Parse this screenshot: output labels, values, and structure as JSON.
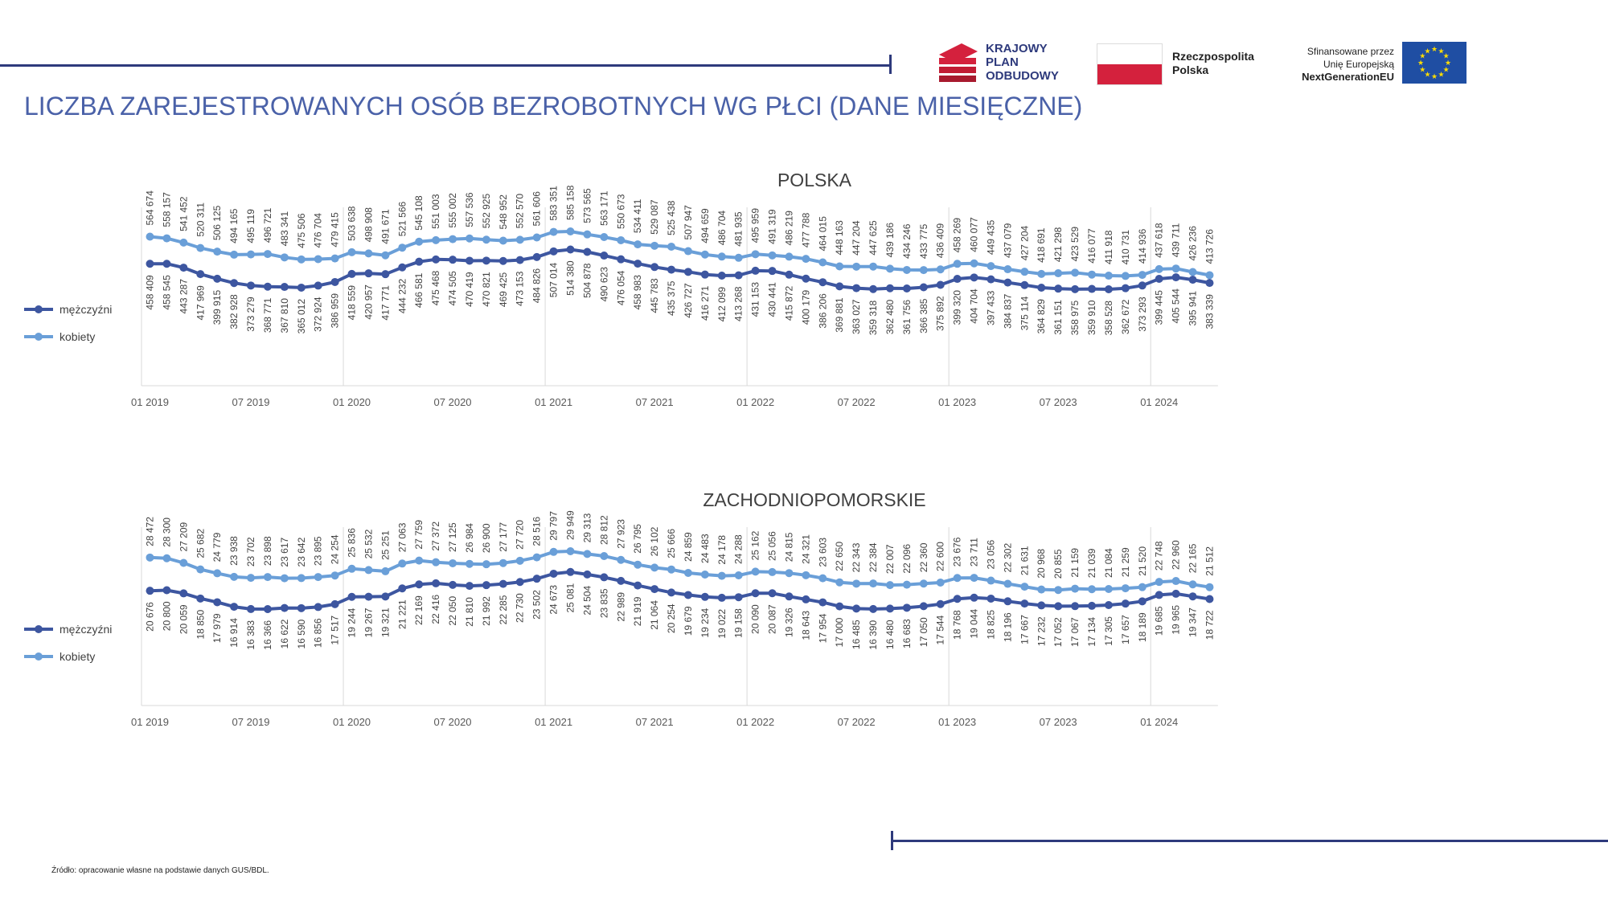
{
  "page": {
    "title": "LICZBA ZAREJESTROWANYCH OSÓB BEZROBOTNYCH WG PŁCI (DANE MIESIĘCZNE)",
    "source": "Źródło: opracowanie własne na podstawie danych GUS/BDL.",
    "logos": {
      "kpo_lines": [
        "KRAJOWY",
        "PLAN",
        "ODBUDOWY"
      ],
      "rp_lines": [
        "Rzeczpospolita",
        "Polska"
      ],
      "eu_lines": [
        "Sfinansowane przez",
        "Unię Europejską",
        "NextGenerationEU"
      ]
    },
    "colors": {
      "accent": "#2e3a7c",
      "title": "#4a61a8",
      "men": "#3d56a0",
      "women": "#6a9fd8",
      "kpo_red": "#d4213d"
    }
  },
  "chart_data": [
    {
      "type": "line",
      "title": "POLSKA",
      "x": [
        "01 2019",
        "02 2019",
        "03 2019",
        "04 2019",
        "05 2019",
        "06 2019",
        "07 2019",
        "08 2019",
        "09 2019",
        "10 2019",
        "11 2019",
        "12 2019",
        "01 2020",
        "02 2020",
        "03 2020",
        "04 2020",
        "05 2020",
        "06 2020",
        "07 2020",
        "08 2020",
        "09 2020",
        "10 2020",
        "11 2020",
        "12 2020",
        "01 2021",
        "02 2021",
        "03 2021",
        "04 2021",
        "05 2021",
        "06 2021",
        "07 2021",
        "08 2021",
        "09 2021",
        "10 2021",
        "11 2021",
        "12 2021",
        "01 2022",
        "02 2022",
        "03 2022",
        "04 2022",
        "05 2022",
        "06 2022",
        "07 2022",
        "08 2022",
        "09 2022",
        "10 2022",
        "11 2022",
        "12 2022",
        "01 2023",
        "02 2023",
        "03 2023",
        "04 2023",
        "05 2023",
        "06 2023",
        "07 2023",
        "08 2023",
        "09 2023",
        "10 2023",
        "11 2023",
        "12 2023",
        "01 2024",
        "02 2024",
        "03 2024",
        "04 2024"
      ],
      "tick_labels": [
        "01 2019",
        "07 2019",
        "01 2020",
        "07 2020",
        "01 2021",
        "07 2021",
        "01 2022",
        "07 2022",
        "01 2023",
        "07 2023",
        "01 2024"
      ],
      "legend_position": "left",
      "series": [
        {
          "name": "mężczyźni",
          "color": "#3d56a0",
          "labels": [
            "458 409",
            "458 545",
            "443 287",
            "417 969",
            "399 915",
            "382 928",
            "373 279",
            "368 771",
            "367 810",
            "365 012",
            "372 924",
            "386 959",
            "418 559",
            "420 957",
            "417 771",
            "444 232",
            "466 581",
            "475 468",
            "474 505",
            "470 419",
            "470 821",
            "469 425",
            "473 153",
            "484 826",
            "507 014",
            "514 380",
            "504 878",
            "490 623",
            "476 054",
            "458 983",
            "445 783",
            "435 375",
            "426 727",
            "416 271",
            "412 099",
            "413 268",
            "431 153",
            "430 441",
            "415 872",
            "400 179",
            "386 206",
            "369 881",
            "363 027",
            "359 318",
            "362 480",
            "361 756",
            "366 385",
            "375 892",
            "399 320",
            "404 704",
            "397 433",
            "384 837",
            "375 114",
            "364 829",
            "361 151",
            "358 975",
            "359 910",
            "358 528",
            "362 672",
            "373 293",
            "399 445",
            "405 544",
            "395 941",
            "383 339"
          ],
          "values": [
            458409,
            458545,
            443287,
            417969,
            399915,
            382928,
            373279,
            368771,
            367810,
            365012,
            372924,
            386959,
            418559,
            420957,
            417771,
            444232,
            466581,
            475468,
            474505,
            470419,
            470821,
            469425,
            473153,
            484826,
            507014,
            514380,
            504878,
            490623,
            476054,
            458983,
            445783,
            435375,
            426727,
            416271,
            412099,
            413268,
            431153,
            430441,
            415872,
            400179,
            386206,
            369881,
            363027,
            359318,
            362480,
            361756,
            366385,
            375892,
            399320,
            404704,
            397433,
            384837,
            375114,
            364829,
            361151,
            358975,
            359910,
            358528,
            362672,
            373293,
            399445,
            405544,
            395941,
            383339
          ]
        },
        {
          "name": "kobiety",
          "color": "#6a9fd8",
          "labels": [
            "564 674",
            "558 157",
            "541 452",
            "520 311",
            "506 125",
            "494 165",
            "495 119",
            "496 721",
            "483 341",
            "475 506",
            "476 704",
            "479 415",
            "503 638",
            "498 908",
            "491 671",
            "521 566",
            "545 108",
            "551 003",
            "555 002",
            "557 536",
            "552 925",
            "548 952",
            "552 570",
            "561 606",
            "583 351",
            "585 158",
            "573 565",
            "563 171",
            "550 673",
            "534 411",
            "529 087",
            "525 438",
            "507 947",
            "494 659",
            "486 704",
            "481 935",
            "495 959",
            "491 319",
            "486 219",
            "477 788",
            "464 015",
            "448 163",
            "447 204",
            "447 625",
            "439 186",
            "434 246",
            "433 775",
            "436 409",
            "458 269",
            "460 077",
            "449 435",
            "437 079",
            "427 204",
            "418 691",
            "421 298",
            "423 529",
            "416 077",
            "411 918",
            "410 731",
            "414 936",
            "437 618",
            "439 711",
            "426 236",
            "413 726"
          ],
          "values": [
            564674,
            558157,
            541452,
            520311,
            506125,
            494165,
            495119,
            496721,
            483341,
            475506,
            476704,
            479415,
            503638,
            498908,
            491671,
            521566,
            545108,
            551003,
            555002,
            557536,
            552925,
            548952,
            552570,
            561606,
            583351,
            585158,
            573565,
            563171,
            550673,
            534411,
            529087,
            525438,
            507947,
            494659,
            486704,
            481935,
            495959,
            491319,
            486219,
            477788,
            464015,
            448163,
            447204,
            447625,
            439186,
            434246,
            433775,
            436409,
            458269,
            460077,
            449435,
            437079,
            427204,
            418691,
            421298,
            423529,
            416077,
            411918,
            410731,
            414936,
            437618,
            439711,
            426236,
            413726
          ]
        }
      ]
    },
    {
      "type": "line",
      "title": "ZACHODNIOPOMORSKIE",
      "x": [
        "01 2019",
        "02 2019",
        "03 2019",
        "04 2019",
        "05 2019",
        "06 2019",
        "07 2019",
        "08 2019",
        "09 2019",
        "10 2019",
        "11 2019",
        "12 2019",
        "01 2020",
        "02 2020",
        "03 2020",
        "04 2020",
        "05 2020",
        "06 2020",
        "07 2020",
        "08 2020",
        "09 2020",
        "10 2020",
        "11 2020",
        "12 2020",
        "01 2021",
        "02 2021",
        "03 2021",
        "04 2021",
        "05 2021",
        "06 2021",
        "07 2021",
        "08 2021",
        "09 2021",
        "10 2021",
        "11 2021",
        "12 2021",
        "01 2022",
        "02 2022",
        "03 2022",
        "04 2022",
        "05 2022",
        "06 2022",
        "07 2022",
        "08 2022",
        "09 2022",
        "10 2022",
        "11 2022",
        "12 2022",
        "01 2023",
        "02 2023",
        "03 2023",
        "04 2023",
        "05 2023",
        "06 2023",
        "07 2023",
        "08 2023",
        "09 2023",
        "10 2023",
        "11 2023",
        "12 2023",
        "01 2024",
        "02 2024",
        "03 2024",
        "04 2024"
      ],
      "tick_labels": [
        "01 2019",
        "07 2019",
        "01 2020",
        "07 2020",
        "01 2021",
        "07 2021",
        "01 2022",
        "07 2022",
        "01 2023",
        "07 2023",
        "01 2024"
      ],
      "legend_position": "left",
      "series": [
        {
          "name": "mężczyźni",
          "color": "#3d56a0",
          "labels": [
            "20 676",
            "20 800",
            "20 059",
            "18 850",
            "17 979",
            "16 914",
            "16 383",
            "16 366",
            "16 622",
            "16 590",
            "16 856",
            "17 517",
            "19 244",
            "19 267",
            "19 321",
            "21 221",
            "22 169",
            "22 416",
            "22 050",
            "21 810",
            "21 992",
            "22 285",
            "22 730",
            "23 502",
            "24 673",
            "25 081",
            "24 504",
            "23 835",
            "22 989",
            "21 919",
            "21 064",
            "20 254",
            "19 679",
            "19 234",
            "19 022",
            "19 158",
            "20 090",
            "20 087",
            "19 326",
            "18 643",
            "17 954",
            "17 000",
            "16 485",
            "16 390",
            "16 480",
            "16 683",
            "17 050",
            "17 544",
            "18 768",
            "19 044",
            "18 825",
            "18 196",
            "17 667",
            "17 232",
            "17 052",
            "17 067",
            "17 134",
            "17 305",
            "17 657",
            "18 189",
            "19 685",
            "19 965",
            "19 347",
            "18 722"
          ],
          "values": [
            20676,
            20800,
            20059,
            18850,
            17979,
            16914,
            16383,
            16366,
            16622,
            16590,
            16856,
            17517,
            19244,
            19267,
            19321,
            21221,
            22169,
            22416,
            22050,
            21810,
            21992,
            22285,
            22730,
            23502,
            24673,
            25081,
            24504,
            23835,
            22989,
            21919,
            21064,
            20254,
            19679,
            19234,
            19022,
            19158,
            20090,
            20087,
            19326,
            18643,
            17954,
            17000,
            16485,
            16390,
            16480,
            16683,
            17050,
            17544,
            18768,
            19044,
            18825,
            18196,
            17667,
            17232,
            17052,
            17067,
            17134,
            17305,
            17657,
            18189,
            19685,
            19965,
            19347,
            18722
          ]
        },
        {
          "name": "kobiety",
          "color": "#6a9fd8",
          "labels": [
            "28 472",
            "28 300",
            "27 209",
            "25 682",
            "24 779",
            "23 938",
            "23 702",
            "23 898",
            "23 617",
            "23 642",
            "23 895",
            "24 254",
            "25 836",
            "25 532",
            "25 251",
            "27 063",
            "27 759",
            "27 372",
            "27 125",
            "26 984",
            "26 900",
            "27 177",
            "27 720",
            "28 516",
            "29 797",
            "29 949",
            "29 313",
            "28 812",
            "27 923",
            "26 795",
            "26 102",
            "25 666",
            "24 859",
            "24 483",
            "24 178",
            "24 288",
            "25 162",
            "25 056",
            "24 815",
            "24 321",
            "23 603",
            "22 650",
            "22 343",
            "22 384",
            "22 007",
            "22 096",
            "22 360",
            "22 600",
            "23 676",
            "23 711",
            "23 056",
            "22 302",
            "21 631",
            "20 968",
            "20 855",
            "21 159",
            "21 039",
            "21 084",
            "21 259",
            "21 520",
            "22 748",
            "22 960",
            "22 165",
            "21 512"
          ],
          "values": [
            28472,
            28300,
            27209,
            25682,
            24779,
            23938,
            23702,
            23898,
            23617,
            23642,
            23895,
            24254,
            25836,
            25532,
            25251,
            27063,
            27759,
            27372,
            27125,
            26984,
            26900,
            27177,
            27720,
            28516,
            29797,
            29949,
            29313,
            28812,
            27923,
            26795,
            26102,
            25666,
            24859,
            24483,
            24178,
            24288,
            25162,
            25056,
            24815,
            24321,
            23603,
            22650,
            22343,
            22384,
            22007,
            22096,
            22360,
            22600,
            23676,
            23711,
            23056,
            22302,
            21631,
            20968,
            20855,
            21159,
            21039,
            21084,
            21259,
            21520,
            22748,
            22960,
            22165,
            21512
          ]
        }
      ]
    }
  ]
}
